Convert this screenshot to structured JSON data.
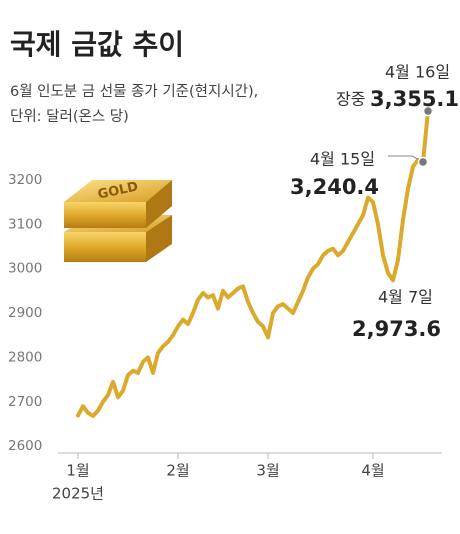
{
  "chart_data": {
    "type": "line",
    "title": "국제 금값 추이",
    "subtitle": [
      "6월 인도분 금 선물 종가 기준(현지시간),",
      "단위: 달러(온스 당)"
    ],
    "illustration_text": "GOLD",
    "x_year_label": "2025년",
    "intraday_label": "장중",
    "categories": [
      "1월",
      null,
      null,
      null,
      null,
      null,
      null,
      null,
      null,
      null,
      null,
      null,
      null,
      null,
      null,
      null,
      null,
      null,
      null,
      null,
      "2월",
      null,
      null,
      null,
      null,
      null,
      null,
      null,
      null,
      null,
      null,
      null,
      null,
      null,
      null,
      null,
      null,
      null,
      "3월",
      null,
      null,
      null,
      null,
      null,
      null,
      null,
      null,
      null,
      null,
      null,
      null,
      null,
      null,
      null,
      null,
      null,
      null,
      null,
      null,
      "4월",
      null,
      null,
      null,
      null,
      null,
      null,
      null,
      null,
      null,
      null,
      null
    ],
    "series": [
      {
        "name": "금 선물 종가",
        "color": "#dba92b",
        "values": [
          2669,
          2690,
          2675,
          2668,
          2680,
          2700,
          2715,
          2745,
          2710,
          2725,
          2760,
          2770,
          2765,
          2790,
          2800,
          2765,
          2810,
          2825,
          2835,
          2850,
          2870,
          2885,
          2875,
          2900,
          2930,
          2945,
          2935,
          2940,
          2910,
          2950,
          2935,
          2945,
          2955,
          2960,
          2925,
          2900,
          2880,
          2870,
          2845,
          2900,
          2915,
          2920,
          2910,
          2900,
          2925,
          2950,
          2980,
          3000,
          3010,
          3030,
          3040,
          3045,
          3030,
          3040,
          3060,
          3080,
          3100,
          3120,
          3160,
          3150,
          3100,
          3030,
          2990,
          2973.6,
          3020,
          3110,
          3180,
          3230,
          3245,
          3240.4,
          3355.1
        ],
        "point_labels": [
          null,
          null,
          null,
          null,
          null,
          null,
          null,
          null,
          null,
          null,
          null,
          null,
          null,
          null,
          null,
          null,
          null,
          null,
          null,
          null,
          null,
          null,
          null,
          null,
          null,
          null,
          null,
          null,
          null,
          null,
          null,
          null,
          null,
          null,
          null,
          null,
          null,
          null,
          null,
          null,
          null,
          null,
          null,
          null,
          null,
          null,
          null,
          null,
          null,
          null,
          null,
          null,
          null,
          null,
          null,
          null,
          null,
          null,
          null,
          null,
          null,
          null,
          null,
          "4월 7일",
          null,
          null,
          null,
          null,
          null,
          "4월 15일",
          "4월 16일"
        ],
        "value_labels": [
          null,
          null,
          null,
          null,
          null,
          null,
          null,
          null,
          null,
          null,
          null,
          null,
          null,
          null,
          null,
          null,
          null,
          null,
          null,
          null,
          null,
          null,
          null,
          null,
          null,
          null,
          null,
          null,
          null,
          null,
          null,
          null,
          null,
          null,
          null,
          null,
          null,
          null,
          null,
          null,
          null,
          null,
          null,
          null,
          null,
          null,
          null,
          null,
          null,
          null,
          null,
          null,
          null,
          null,
          null,
          null,
          null,
          null,
          null,
          null,
          null,
          null,
          null,
          "2,973.6",
          null,
          null,
          null,
          null,
          null,
          "3,240.4",
          "3,355.1"
        ]
      }
    ],
    "ylim": [
      2580,
      3380
    ],
    "yticks": [
      2600,
      2700,
      2800,
      2900,
      3000,
      3100,
      3200
    ],
    "grid": false
  }
}
